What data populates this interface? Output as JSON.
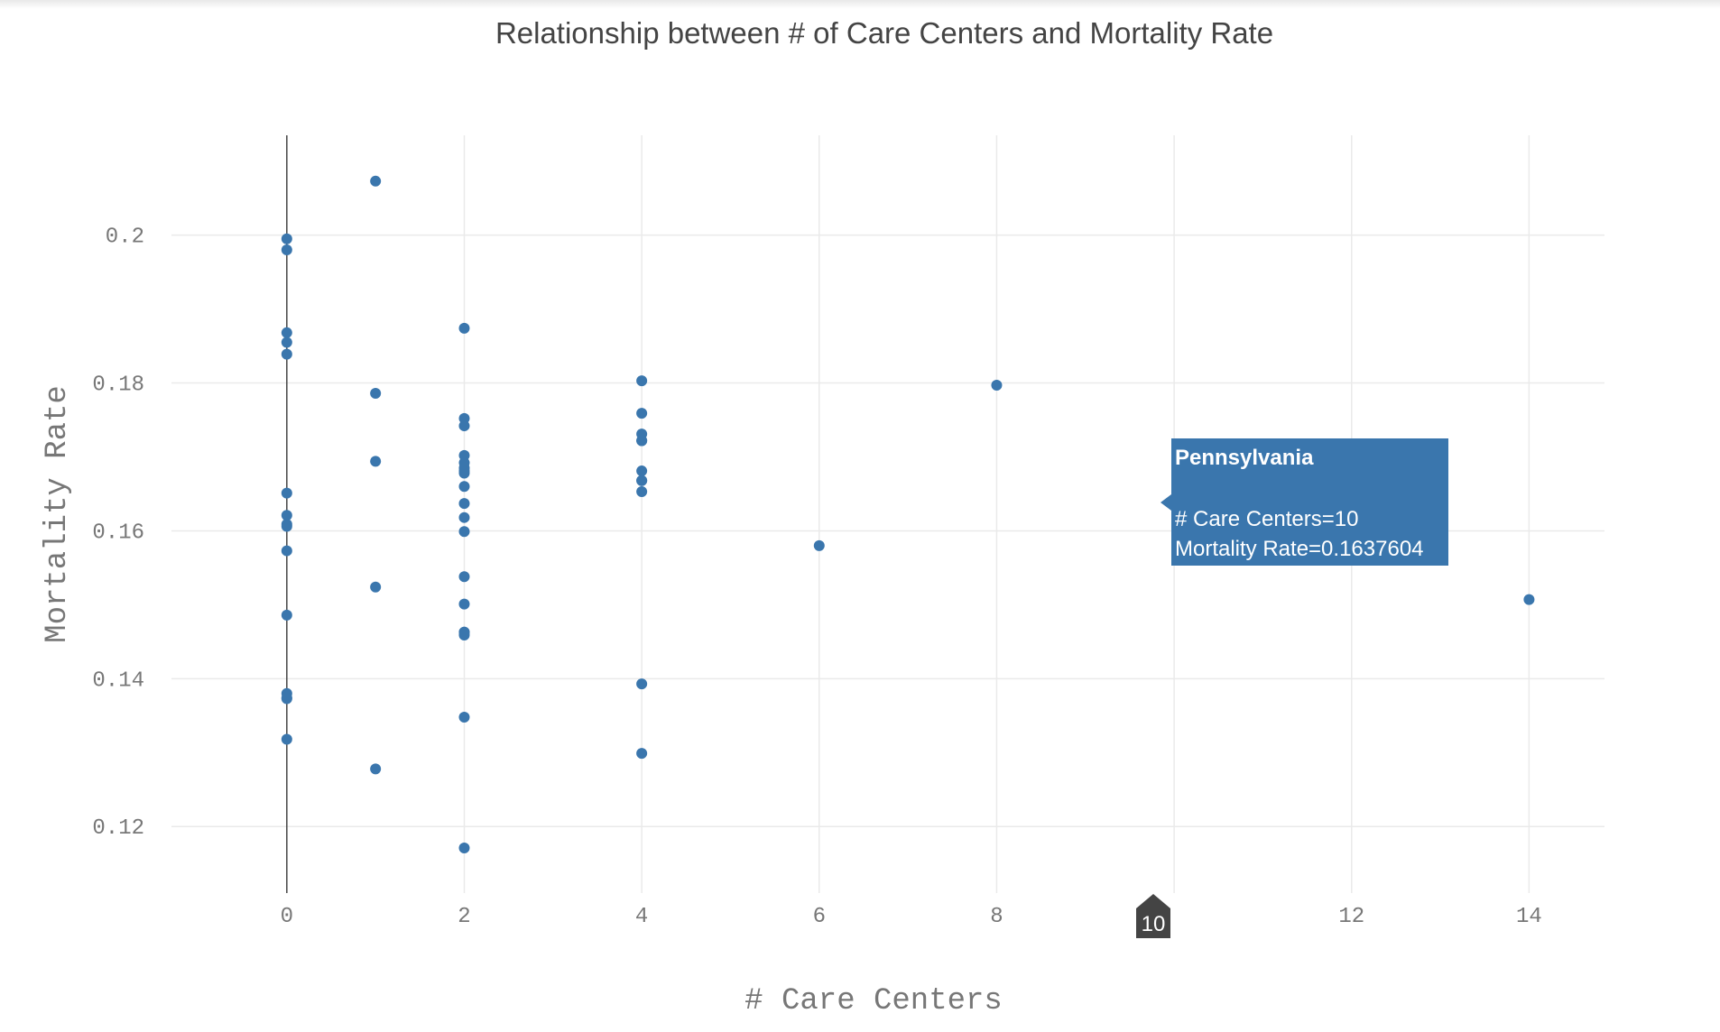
{
  "chart_data": {
    "type": "scatter",
    "title": "Relationship between # of Care Centers and Mortality Rate",
    "xlabel": "# Care Centers",
    "ylabel": "Mortality Rate",
    "xlim": [
      -1.3,
      14.85
    ],
    "ylim": [
      0.111,
      0.2135
    ],
    "xticks": [
      0,
      2,
      4,
      6,
      8,
      10,
      12,
      14
    ],
    "xtick_labels": [
      "0",
      "2",
      "4",
      "6",
      "8",
      "10",
      "12",
      "14"
    ],
    "yticks": [
      0.12,
      0.14,
      0.16,
      0.18,
      0.2
    ],
    "ytick_labels": [
      "0.12",
      "0.14",
      "0.16",
      "0.18",
      "0.2"
    ],
    "grid": true,
    "marker_color": "#3a76ad",
    "x": [
      0,
      0,
      0,
      0,
      0,
      0,
      0,
      0,
      0,
      0,
      0,
      0,
      0,
      0,
      0,
      1,
      1,
      1,
      1,
      1,
      2,
      2,
      2,
      2,
      2,
      2,
      2,
      2,
      2,
      2,
      2,
      2,
      2,
      2,
      2,
      2,
      2,
      2,
      2,
      4,
      4,
      4,
      4,
      4,
      4,
      4,
      4,
      4,
      4,
      4,
      6,
      8,
      10,
      14
    ],
    "y": [
      0.1995,
      0.198,
      0.1868,
      0.1855,
      0.1839,
      0.1651,
      0.1621,
      0.1609,
      0.1606,
      0.1573,
      0.1486,
      0.138,
      0.1374,
      0.1318,
      0.1373,
      0.2073,
      0.1786,
      0.1694,
      0.1524,
      0.1278,
      0.1874,
      0.1752,
      0.1742,
      0.1702,
      0.1692,
      0.1681,
      0.1678,
      0.166,
      0.1637,
      0.1618,
      0.1599,
      0.1538,
      0.1501,
      0.1463,
      0.1459,
      0.1348,
      0.1171,
      0.1685,
      0.1463,
      0.1803,
      0.1759,
      0.1731,
      0.1722,
      0.1681,
      0.1668,
      0.1653,
      0.1393,
      0.1299,
      0.1668,
      0.1722,
      0.158,
      0.1797,
      0.1637604,
      0.1507
    ]
  },
  "tooltip": {
    "title": "Pennsylvania",
    "line1": "# Care Centers=10",
    "line2": "Mortality Rate=0.1637604",
    "bg_color": "#3a76ad"
  },
  "spike_label": {
    "text": "10",
    "bg_color": "#444444"
  }
}
